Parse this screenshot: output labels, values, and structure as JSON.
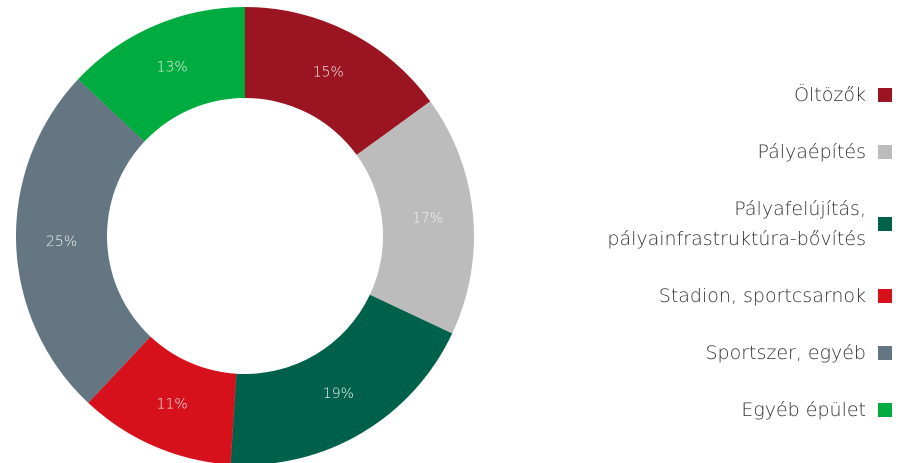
{
  "chart_data": {
    "type": "donut",
    "categories": [
      "Öltözők",
      "Pályaépítés",
      "Pályafelújítás, pályainfrastruktúra-bővítés",
      "Stadion, sportcsarnok",
      "Sportszer, egyéb",
      "Egyéb épület"
    ],
    "values": [
      15,
      17,
      19,
      11,
      25,
      13
    ],
    "value_labels": [
      "15%",
      "17%",
      "19%",
      "11%",
      "25%",
      "13%"
    ],
    "colors": [
      "#9a1421",
      "#bcbcbc",
      "#00614a",
      "#d7111b",
      "#637681",
      "#00ab3f"
    ],
    "legend": "right"
  }
}
